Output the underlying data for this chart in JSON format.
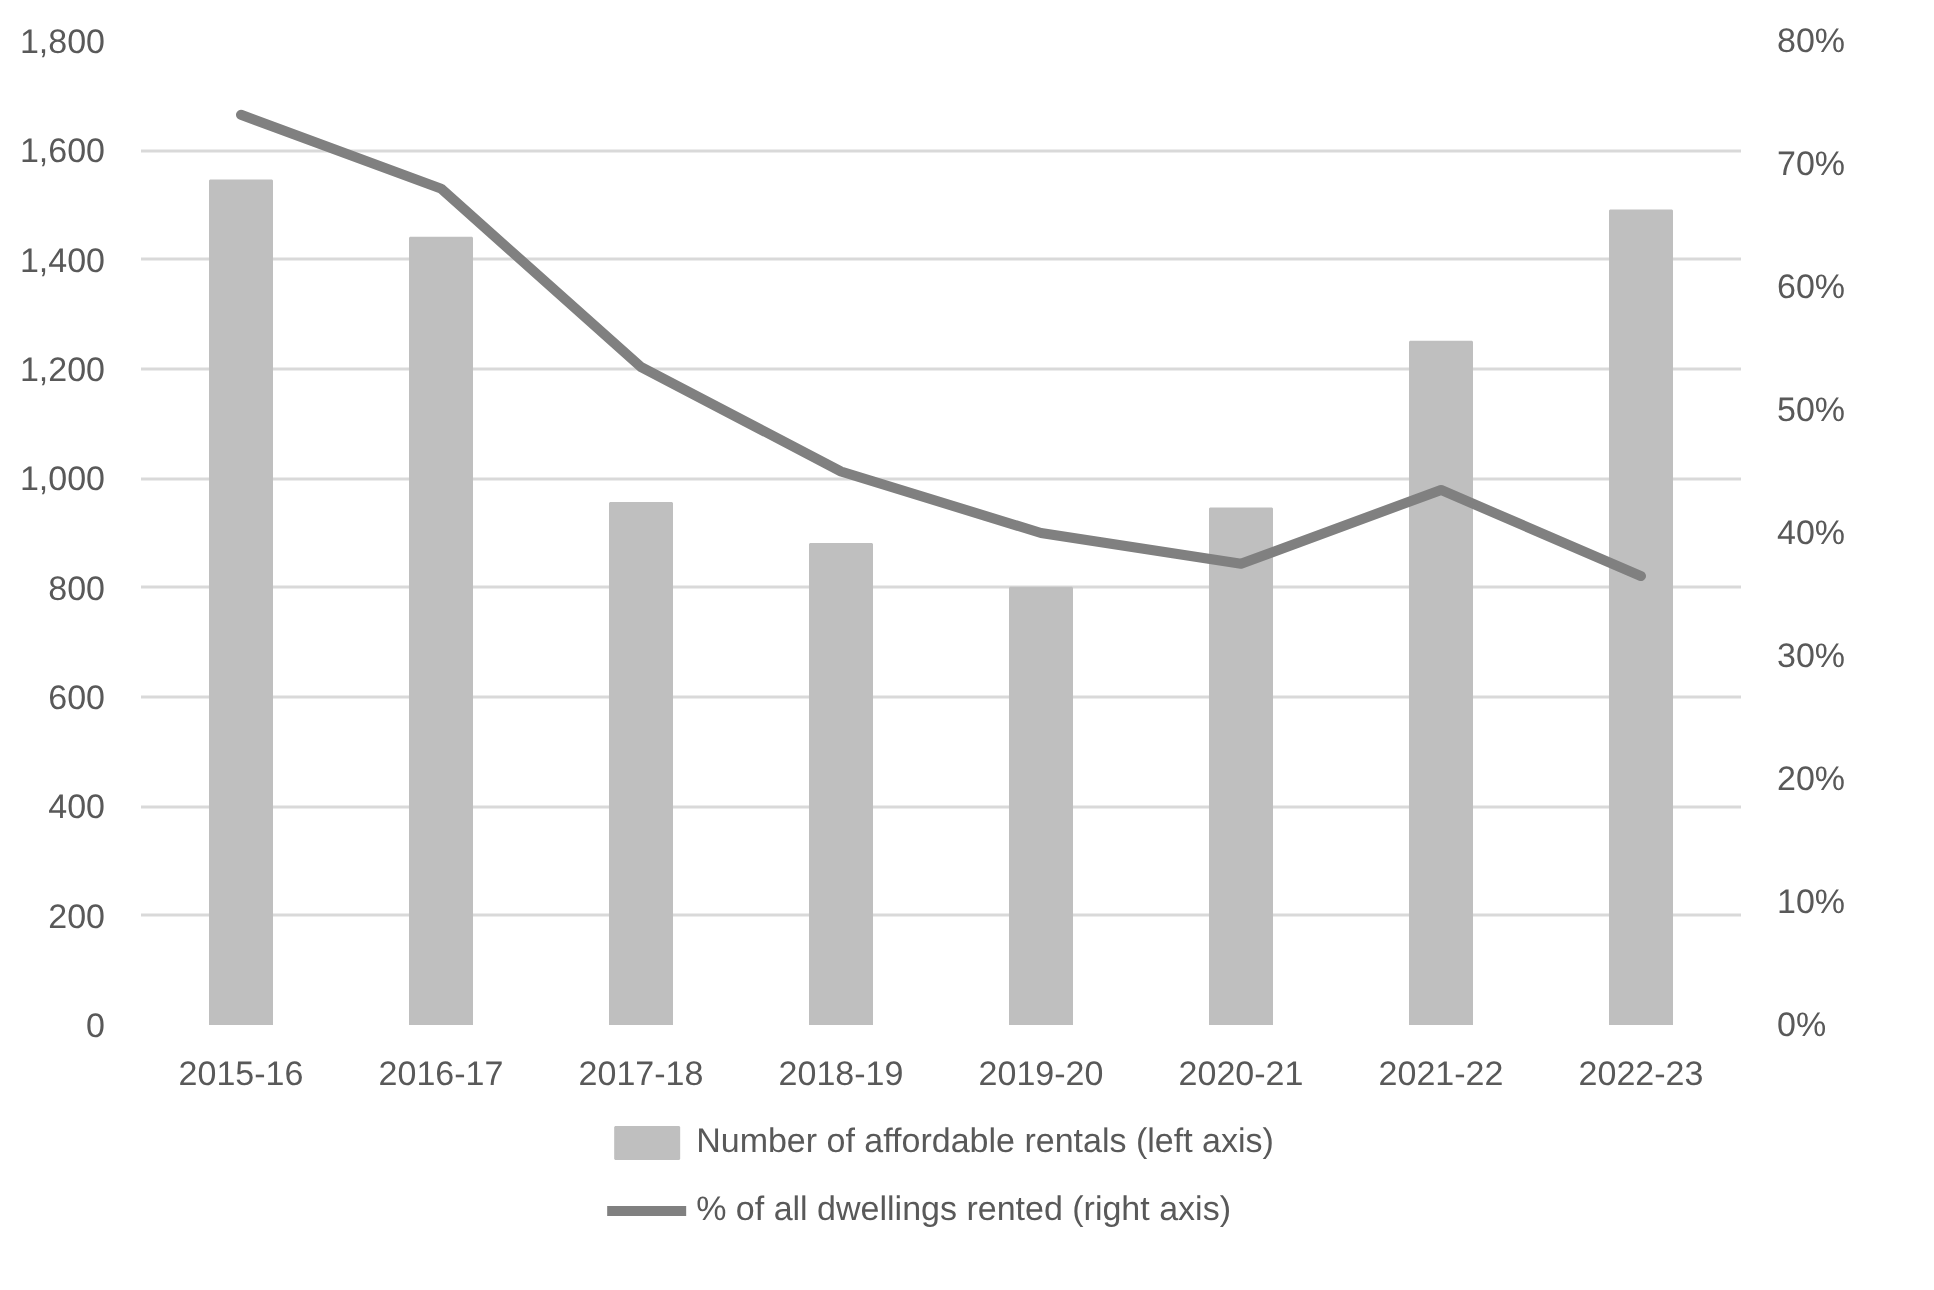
{
  "chart_data": {
    "type": "bar",
    "categories": [
      "2015-16",
      "2016-17",
      "2017-18",
      "2018-19",
      "2019-20",
      "2020-21",
      "2021-22",
      "2022-23"
    ],
    "series": [
      {
        "name": "Number of affordable rentals (left axis)",
        "color": "#bfbfbf",
        "values": [
          1545,
          1440,
          955,
          880,
          800,
          945,
          1250,
          1490
        ]
      },
      {
        "name": "% of all dwellings rented (right axis)",
        "type": "line",
        "axis": "y2",
        "color": "#808080",
        "values": [
          74,
          68,
          53.5,
          45,
          40,
          37.5,
          43.5,
          36.5
        ]
      }
    ],
    "ylim": [
      0,
      1800
    ],
    "yticks": [
      {
        "value": 0,
        "label": "0"
      },
      {
        "value": 200,
        "label": "200"
      },
      {
        "value": 400,
        "label": "400"
      },
      {
        "value": 600,
        "label": "600"
      },
      {
        "value": 800,
        "label": "800"
      },
      {
        "value": 1000,
        "label": "1,000"
      },
      {
        "value": 1200,
        "label": "1,200"
      },
      {
        "value": 1400,
        "label": "1,400"
      },
      {
        "value": 1600,
        "label": "1,600"
      },
      {
        "value": 1800,
        "label": "1,800"
      }
    ],
    "y2lim": [
      0,
      80
    ],
    "y2ticks": [
      {
        "value": 0,
        "label": "0%"
      },
      {
        "value": 10,
        "label": "10%"
      },
      {
        "value": 20,
        "label": "20%"
      },
      {
        "value": 30,
        "label": "30%"
      },
      {
        "value": 40,
        "label": "40%"
      },
      {
        "value": 50,
        "label": "50%"
      },
      {
        "value": 60,
        "label": "60%"
      },
      {
        "value": 70,
        "label": "70%"
      },
      {
        "value": 80,
        "label": "80%"
      }
    ],
    "grid": "y",
    "legend": "bottom",
    "marker": "none",
    "line_style": "solid"
  }
}
